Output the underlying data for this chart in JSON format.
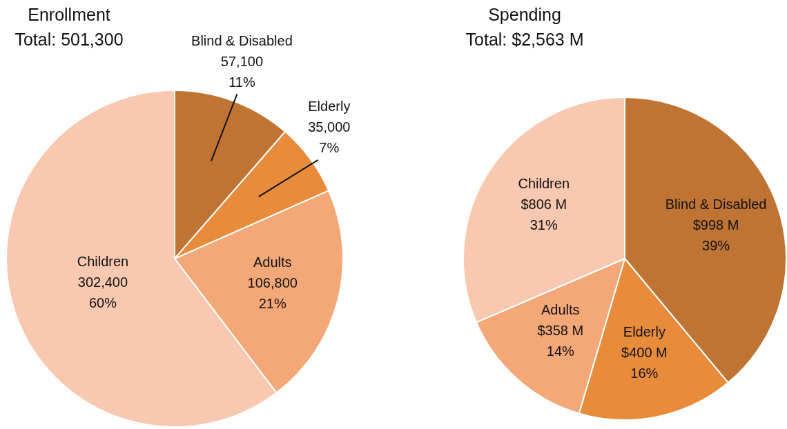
{
  "chart_data": [
    {
      "type": "pie",
      "title": "Enrollment",
      "subtitle": "Total: 501,300",
      "categories": [
        "Blind & Disabled",
        "Elderly",
        "Adults",
        "Children"
      ],
      "values": [
        57100,
        35000,
        106800,
        302400
      ],
      "colors": [
        "#c07434",
        "#e88c3c",
        "#f4a878",
        "#f8c8b0"
      ],
      "value_labels": [
        "57,100\n11%",
        "35,000\n7%",
        "106,800\n21%",
        "302,400\n60%"
      ],
      "legend": false
    },
    {
      "type": "pie",
      "title": "Spending",
      "subtitle": "Total: $2,563 M",
      "categories": [
        "Blind & Disabled",
        "Elderly",
        "Adults",
        "Children"
      ],
      "values": [
        998,
        400,
        358,
        806
      ],
      "colors": [
        "#c07434",
        "#e88c3c",
        "#f4a878",
        "#f8c8b0"
      ],
      "value_labels": [
        "$998 M\n39%",
        "$400 M\n16%",
        "$358 M\n14%",
        "$806 M\n31%"
      ],
      "legend": false
    }
  ]
}
